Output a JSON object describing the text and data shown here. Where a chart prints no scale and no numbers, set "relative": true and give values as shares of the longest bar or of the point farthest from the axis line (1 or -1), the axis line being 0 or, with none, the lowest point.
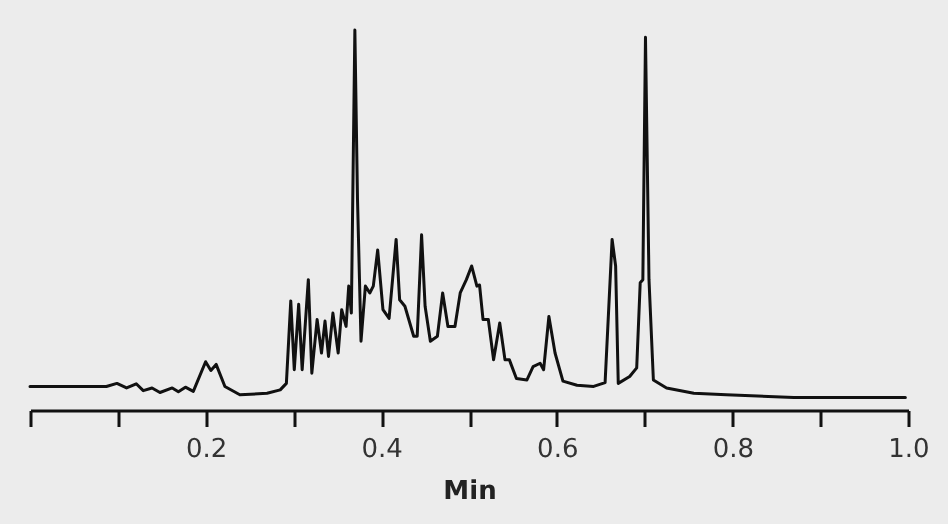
{
  "chart_data": {
    "type": "line",
    "xlabel": "Min",
    "relative": true,
    "color": "#111111",
    "xlim": [
      0,
      1
    ],
    "xticks": [
      {
        "value": 0,
        "label": null
      },
      {
        "value": 0.1,
        "label": null
      },
      0.2,
      {
        "value": 0.3,
        "label": null
      },
      0.4,
      {
        "value": 0.5,
        "label": null
      },
      0.6,
      {
        "value": 0.7,
        "label": null
      },
      0.8,
      {
        "value": 0.9,
        "label": null
      },
      {
        "value": 1,
        "label": "1.0"
      }
    ],
    "x": [
      0,
      0.087,
      0.099,
      0.11,
      0.121,
      0.129,
      0.139,
      0.148,
      0.162,
      0.169,
      0.177,
      0.186,
      0.2,
      0.206,
      0.212,
      0.222,
      0.239,
      0.27,
      0.285,
      0.292,
      0.297,
      0.301,
      0.306,
      0.31,
      0.317,
      0.321,
      0.327,
      0.332,
      0.336,
      0.34,
      0.345,
      0.351,
      0.355,
      0.36,
      0.363,
      0.366,
      0.37,
      0.373,
      0.377,
      0.382,
      0.387,
      0.391,
      0.396,
      0.402,
      0.409,
      0.417,
      0.421,
      0.427,
      0.437,
      0.441,
      0.446,
      0.45,
      0.456,
      0.464,
      0.47,
      0.476,
      0.484,
      0.49,
      0.497,
      0.503,
      0.509,
      0.512,
      0.516,
      0.522,
      0.528,
      0.535,
      0.541,
      0.546,
      0.554,
      0.566,
      0.573,
      0.581,
      0.585,
      0.591,
      0.598,
      0.607,
      0.623,
      0.642,
      0.655,
      0.663,
      0.667,
      0.67,
      0.683,
      0.691,
      0.695,
      0.698,
      0.701,
      0.705,
      0.71,
      0.725,
      0.756,
      0.793,
      0.87,
      0.997
    ],
    "values": [
      0.062,
      0.062,
      0.07,
      0.058,
      0.069,
      0.051,
      0.058,
      0.046,
      0.058,
      0.048,
      0.06,
      0.049,
      0.127,
      0.104,
      0.12,
      0.062,
      0.04,
      0.044,
      0.053,
      0.07,
      0.287,
      0.106,
      0.278,
      0.106,
      0.343,
      0.097,
      0.238,
      0.15,
      0.234,
      0.141,
      0.255,
      0.15,
      0.264,
      0.22,
      0.326,
      0.255,
      1,
      0.555,
      0.181,
      0.326,
      0.308,
      0.326,
      0.421,
      0.264,
      0.241,
      0.449,
      0.29,
      0.273,
      0.194,
      0.194,
      0.461,
      0.273,
      0.181,
      0.194,
      0.308,
      0.22,
      0.22,
      0.308,
      0.343,
      0.379,
      0.326,
      0.329,
      0.238,
      0.238,
      0.132,
      0.229,
      0.132,
      0.132,
      0.083,
      0.079,
      0.114,
      0.123,
      0.106,
      0.246,
      0.15,
      0.076,
      0.065,
      0.062,
      0.072,
      0.449,
      0.379,
      0.07,
      0.088,
      0.111,
      0.335,
      0.343,
      0.981,
      0.343,
      0.079,
      0.058,
      0.044,
      0.04,
      0.033,
      0.033
    ]
  }
}
